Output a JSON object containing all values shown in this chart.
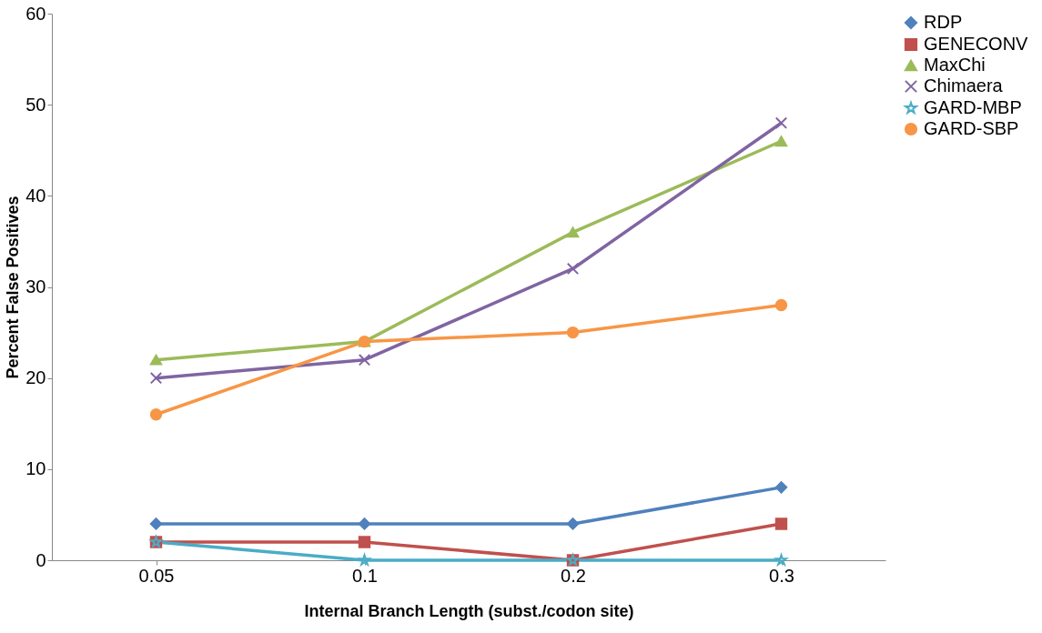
{
  "chart_data": {
    "type": "line",
    "xlabel": "Internal Branch Length (subst./codon site)",
    "ylabel": "Percent False Positives",
    "categories": [
      "0.05",
      "0.1",
      "0.2",
      "0.3"
    ],
    "series": [
      {
        "name": "RDP",
        "color": "#4f81bd",
        "marker": "diamond",
        "values": [
          4,
          4,
          4,
          8
        ]
      },
      {
        "name": "GENECONV",
        "color": "#c0504d",
        "marker": "square",
        "values": [
          2,
          2,
          0,
          4
        ]
      },
      {
        "name": "MaxChi",
        "color": "#9bbb59",
        "marker": "triangle",
        "values": [
          22,
          24,
          36,
          46
        ]
      },
      {
        "name": "Chimaera",
        "color": "#8064a2",
        "marker": "cross",
        "values": [
          20,
          22,
          32,
          48
        ]
      },
      {
        "name": "GARD-MBP",
        "color": "#4bacc6",
        "marker": "star",
        "values": [
          2,
          0,
          0,
          0
        ]
      },
      {
        "name": "GARD-SBP",
        "color": "#f79646",
        "marker": "circle",
        "values": [
          16,
          24,
          25,
          28
        ]
      }
    ],
    "ylim": [
      0,
      60
    ],
    "yticks": [
      0,
      10,
      20,
      30,
      40,
      50,
      60
    ],
    "grid": false,
    "legend": "right"
  }
}
